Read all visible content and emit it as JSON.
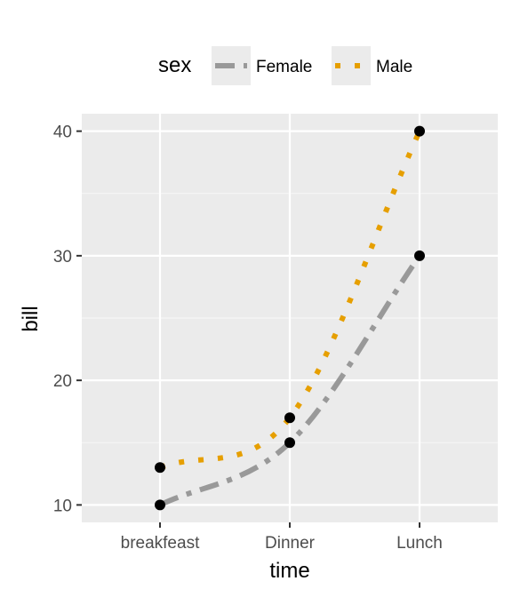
{
  "chart_data": {
    "type": "line",
    "xlabel": "time",
    "ylabel": "bill",
    "categories": [
      "breakfeast",
      "Dinner",
      "Lunch"
    ],
    "ylim": [
      8.6,
      41.4
    ],
    "yticks": [
      10,
      20,
      30,
      40
    ],
    "grid": true,
    "legend": {
      "title": "sex",
      "position": "top"
    },
    "series": [
      {
        "name": "Female",
        "values": [
          10,
          15,
          30
        ],
        "color": "#999999",
        "linetype": "twodash"
      },
      {
        "name": "Male",
        "values": [
          13,
          17,
          40
        ],
        "color": "#E69F00",
        "linetype": "dotted"
      }
    ],
    "colors": {
      "panel": "#EBEBEB",
      "grid_major": "#FFFFFF",
      "grid_minor": "#F5F5F5",
      "point": "#000000",
      "legend_key": "#EBEBEB",
      "tick": "#333333"
    }
  }
}
